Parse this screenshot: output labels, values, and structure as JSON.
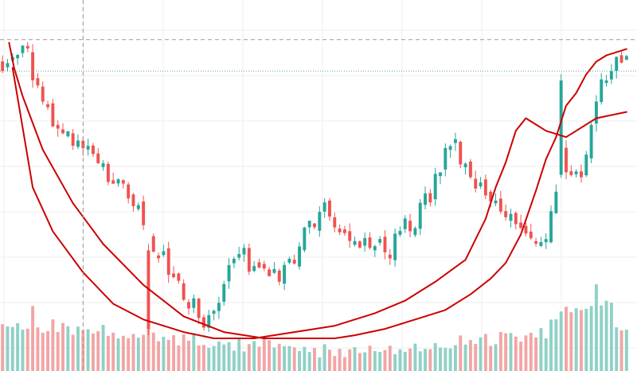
{
  "chart_data": {
    "type": "candlestick",
    "title": "",
    "xlabel": "",
    "ylabel": "",
    "price_ylim": [
      0,
      100
    ],
    "volume_ylim": [
      0,
      100
    ],
    "n_bars": 125,
    "colors": {
      "up": "#26a69a",
      "up_volume": "#8fd1c6",
      "down": "#ef5350",
      "down_volume": "#f2a5a5",
      "pattern_line": "#cc0000",
      "grid": "#eeeeee",
      "crosshair": "#9a9a9a",
      "price_marker": "#5fa9a2"
    },
    "reference_level": 85,
    "crosshair_level": 95,
    "crosshair_bar": 16,
    "anchors": [
      [
        0,
        88
      ],
      [
        3,
        92
      ],
      [
        5,
        90
      ],
      [
        7,
        80
      ],
      [
        10,
        70
      ],
      [
        13,
        64
      ],
      [
        16,
        58
      ],
      [
        19,
        56
      ],
      [
        22,
        50
      ],
      [
        25,
        46
      ],
      [
        28,
        38
      ],
      [
        30,
        28
      ],
      [
        33,
        22
      ],
      [
        36,
        12
      ],
      [
        38,
        10
      ],
      [
        40,
        3
      ],
      [
        42,
        8
      ],
      [
        44,
        20
      ],
      [
        46,
        28
      ],
      [
        48,
        26
      ],
      [
        50,
        22
      ],
      [
        53,
        18
      ],
      [
        56,
        22
      ],
      [
        59,
        30
      ],
      [
        62,
        38
      ],
      [
        63,
        42
      ],
      [
        65,
        40
      ],
      [
        67,
        34
      ],
      [
        70,
        30
      ],
      [
        73,
        29
      ],
      [
        76,
        27
      ],
      [
        79,
        34
      ],
      [
        82,
        38
      ],
      [
        85,
        46
      ],
      [
        88,
        58
      ],
      [
        90,
        60
      ],
      [
        91,
        56
      ],
      [
        93,
        52
      ],
      [
        96,
        46
      ],
      [
        98,
        42
      ],
      [
        100,
        40
      ],
      [
        102,
        38
      ],
      [
        104,
        32
      ],
      [
        106,
        28
      ],
      [
        108,
        34
      ],
      [
        110,
        48
      ],
      [
        111,
        62
      ],
      [
        112,
        55
      ],
      [
        114,
        52
      ],
      [
        116,
        56
      ],
      [
        118,
        76
      ],
      [
        120,
        84
      ],
      [
        122,
        88
      ],
      [
        124,
        86
      ]
    ],
    "cup_curve": [
      [
        2,
        86
      ],
      [
        6,
        48
      ],
      [
        10,
        34
      ],
      [
        16,
        21
      ],
      [
        22,
        11
      ],
      [
        28,
        6
      ],
      [
        36,
        2
      ],
      [
        42,
        0
      ],
      [
        50,
        0
      ],
      [
        58,
        2
      ],
      [
        66,
        4
      ],
      [
        74,
        8
      ],
      [
        80,
        12
      ],
      [
        86,
        18
      ],
      [
        92,
        25
      ],
      [
        96,
        38
      ],
      [
        98,
        48
      ],
      [
        100,
        56
      ],
      [
        102,
        66
      ],
      [
        104,
        70
      ],
      [
        106,
        68
      ],
      [
        108,
        66
      ],
      [
        112,
        64
      ],
      [
        118,
        70
      ],
      [
        124,
        72
      ]
    ],
    "handle_curve": [
      [
        1.3,
        94
      ],
      [
        2.3,
        86
      ],
      [
        4,
        77
      ],
      [
        8,
        60
      ],
      [
        14,
        43
      ],
      [
        20,
        30
      ],
      [
        28,
        17
      ],
      [
        36,
        7
      ],
      [
        44,
        2
      ],
      [
        52,
        0
      ],
      [
        60,
        0
      ],
      [
        66,
        0
      ],
      [
        70,
        1
      ],
      [
        76,
        3
      ],
      [
        82,
        6
      ],
      [
        88,
        9
      ],
      [
        93,
        14
      ],
      [
        97,
        19
      ],
      [
        100,
        24
      ],
      [
        103,
        33
      ],
      [
        106,
        47
      ],
      [
        108,
        57
      ],
      [
        110,
        64
      ],
      [
        112,
        74
      ],
      [
        114,
        78
      ],
      [
        116,
        84
      ],
      [
        118,
        88
      ],
      [
        120,
        90
      ],
      [
        122,
        91
      ],
      [
        124,
        92
      ]
    ]
  }
}
